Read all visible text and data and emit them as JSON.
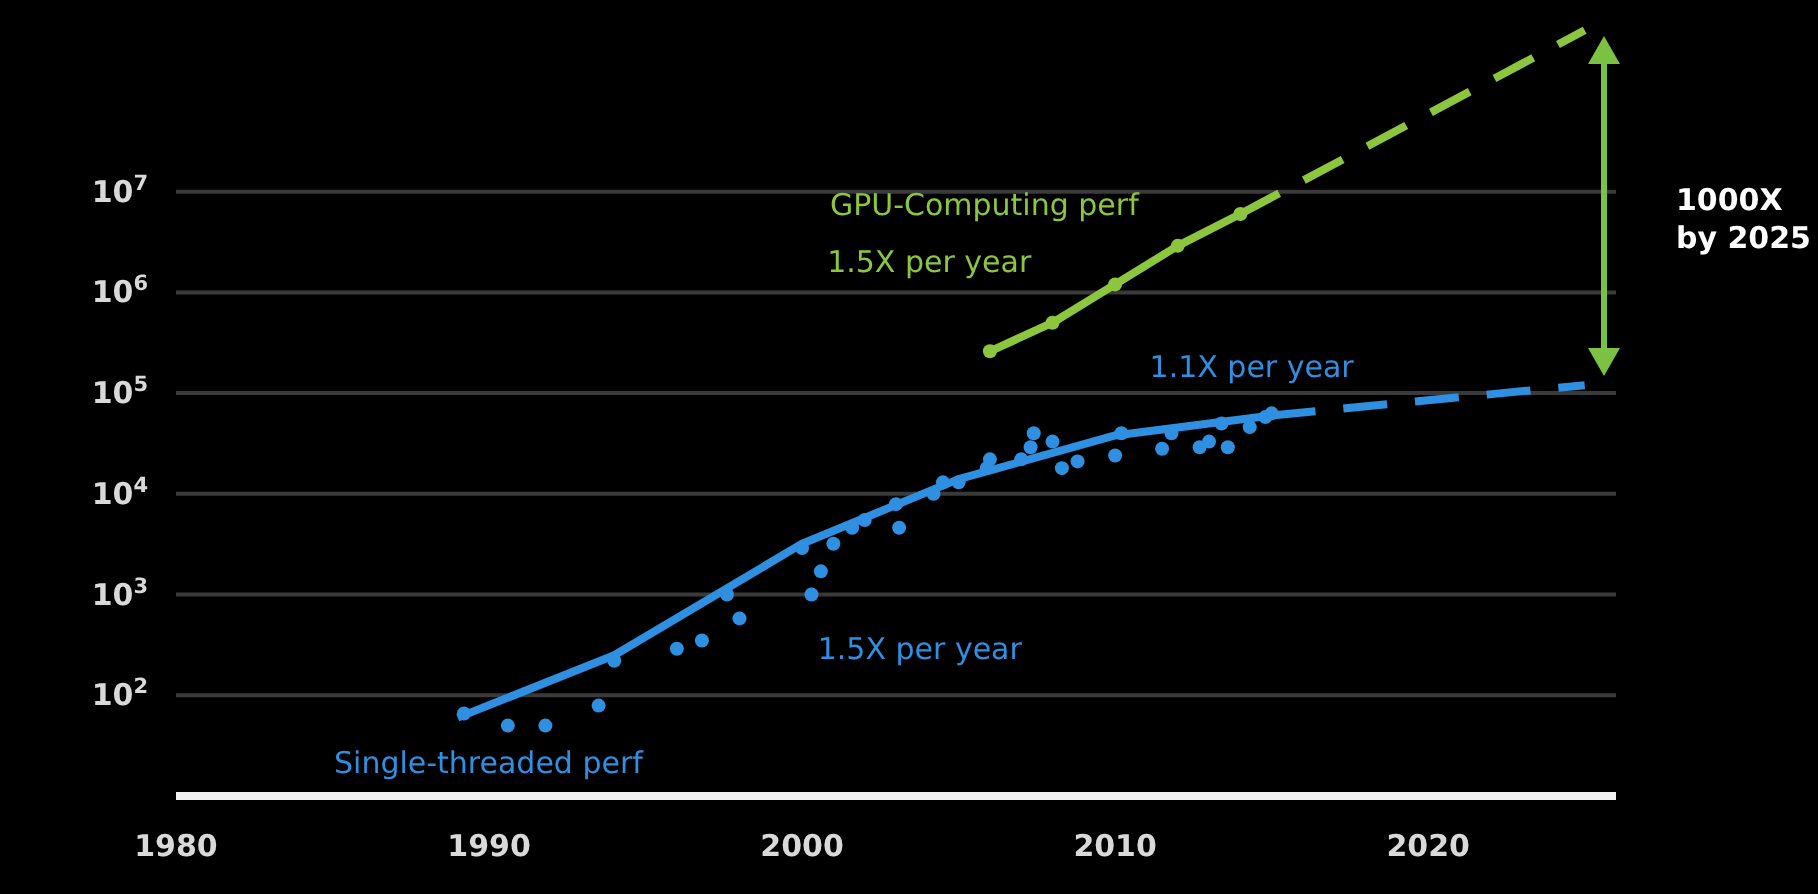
{
  "chart_data": {
    "type": "line",
    "xlim": [
      1980,
      2026
    ],
    "xticks": [
      1980,
      1990,
      2000,
      2010,
      2020
    ],
    "ylim": [
      10,
      800000000
    ],
    "log": "y",
    "yticks": [
      {
        "value": 100,
        "label": "10$^{2}$"
      },
      {
        "value": 1000,
        "label": "10$^{3}$"
      },
      {
        "value": 10000,
        "label": "10$^{4}$"
      },
      {
        "value": 100000,
        "label": "10$^{5}$"
      },
      {
        "value": 1000000,
        "label": "10$^{6}$"
      },
      {
        "value": 10000000,
        "label": "10$^{7}$"
      }
    ],
    "grid": "y",
    "legend": false,
    "series": [
      {
        "name": "Single-threaded perf",
        "type": "scatter",
        "color": "#2f8fe0",
        "marker": "circle",
        "x": [
          1989.2,
          1990.6,
          1991.8,
          1993.5,
          1994,
          1996,
          1996.8,
          1997.6,
          1998,
          2000.3,
          2000,
          2000.6,
          2001,
          2001.6,
          2002,
          2003,
          2003.1,
          2004.2,
          2004.5,
          2005,
          2005.9,
          2006,
          2007,
          2007.3,
          2007.4,
          2008.3,
          2008.8,
          2008,
          2010,
          2010.2,
          2011.5,
          2011.8,
          2012.7,
          2013,
          2013.6,
          2013.4,
          2014.3,
          2014.8,
          2015
        ],
        "values": [
          66,
          50,
          50,
          79,
          220,
          290,
          350,
          1000,
          580,
          1000,
          2900,
          1700,
          3200,
          4600,
          5500,
          7900,
          4600,
          10000,
          13000,
          13000,
          18000,
          22000,
          22000,
          29000,
          40000,
          18000,
          21000,
          33000,
          24000,
          40000,
          28000,
          40000,
          29000,
          33000,
          29000,
          50000,
          46000,
          58000,
          63000
        ]
      },
      {
        "color": "#2f8fe0",
        "marker": "none",
        "line_style": "solid",
        "x": [
          1989,
          1994,
          2000,
          2005,
          2010,
          2015
        ],
        "values": [
          60,
          250,
          3200,
          14000,
          38000,
          60000
        ]
      },
      {
        "type": "line",
        "color": "#2f8fe0",
        "marker": "none",
        "line_style": "dashed",
        "x": [
          2015,
          2025
        ],
        "values": [
          60000,
          120000
        ]
      },
      {
        "name": "GPU-Computing perf",
        "type": "line",
        "color": "#8cc63f",
        "marker": "circle",
        "line_style": "solid",
        "x": [
          2006,
          2008,
          2010,
          2012,
          2014
        ],
        "values": [
          260000,
          500000,
          1200000,
          2900000,
          6000000
        ]
      },
      {
        "type": "line",
        "color": "#8cc63f",
        "marker": "none",
        "line_style": "dashed",
        "x": [
          2014,
          2025
        ],
        "values": [
          6000000,
          400000000
        ]
      }
    ],
    "annotations": [
      "1.5X per year",
      "1.5X per year",
      "1.1X per year",
      "1000X\nby 2025"
    ]
  }
}
